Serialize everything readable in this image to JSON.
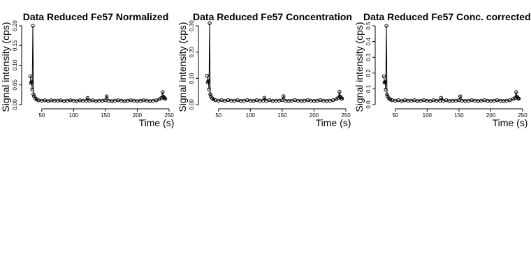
{
  "chart_data": [
    {
      "type": "scatter",
      "title": "Data Reduced Fe57 Normalized",
      "xlabel": "Time (s)",
      "ylabel": "Signal intensity (cps)",
      "xlim": [
        25,
        250
      ],
      "ylim": [
        0,
        0.2
      ],
      "xticks": [
        50,
        100,
        150,
        200,
        250
      ],
      "yticks": [
        0.0,
        0.05,
        0.1,
        0.15,
        0.2
      ],
      "ytick_labels": [
        "0.00",
        "0.05",
        "0.10",
        "0.15",
        "0.20"
      ],
      "grid": false,
      "series": [
        {
          "x": [
            32,
            33,
            34,
            35,
            36,
            37,
            38,
            40,
            42,
            45,
            50,
            55,
            60,
            65,
            70,
            75,
            80,
            85,
            90,
            95,
            100,
            105,
            110,
            115,
            120,
            122,
            125,
            130,
            135,
            140,
            145,
            150,
            152,
            155,
            160,
            165,
            170,
            175,
            180,
            185,
            190,
            195,
            200,
            205,
            210,
            215,
            220,
            225,
            230,
            235,
            238,
            240,
            241,
            242,
            243,
            244
          ],
          "y": [
            0.072,
            0.055,
            0.058,
            0.038,
            0.2,
            0.026,
            0.021,
            0.016,
            0.013,
            0.011,
            0.01,
            0.011,
            0.009,
            0.011,
            0.01,
            0.01,
            0.011,
            0.009,
            0.01,
            0.011,
            0.01,
            0.009,
            0.011,
            0.01,
            0.01,
            0.017,
            0.01,
            0.011,
            0.009,
            0.01,
            0.01,
            0.011,
            0.021,
            0.01,
            0.009,
            0.01,
            0.011,
            0.01,
            0.009,
            0.01,
            0.011,
            0.01,
            0.009,
            0.01,
            0.011,
            0.01,
            0.009,
            0.01,
            0.011,
            0.014,
            0.017,
            0.032,
            0.02,
            0.018,
            0.016,
            0.015
          ]
        }
      ]
    },
    {
      "type": "scatter",
      "title": "Data Reduced Fe57 Concentration",
      "xlabel": "Time (s)",
      "ylabel": "Signal intensity (cps)",
      "xlim": [
        25,
        250
      ],
      "ylim": [
        0,
        0.3
      ],
      "xticks": [
        50,
        100,
        150,
        200,
        250
      ],
      "yticks": [
        0.0,
        0.1,
        0.2,
        0.3
      ],
      "ytick_labels": [
        "0.00",
        "0.10",
        "0.20",
        "0.30"
      ],
      "grid": false,
      "series": [
        {
          "x": [
            32,
            33,
            34,
            35,
            36,
            37,
            38,
            40,
            42,
            45,
            50,
            55,
            60,
            65,
            70,
            75,
            80,
            85,
            90,
            95,
            100,
            105,
            110,
            115,
            120,
            122,
            125,
            130,
            135,
            140,
            145,
            150,
            152,
            155,
            160,
            165,
            170,
            175,
            180,
            185,
            190,
            195,
            200,
            205,
            210,
            215,
            220,
            225,
            230,
            235,
            238,
            240,
            241,
            242,
            243,
            244
          ],
          "y": [
            0.11,
            0.085,
            0.09,
            0.058,
            0.31,
            0.04,
            0.032,
            0.024,
            0.02,
            0.017,
            0.015,
            0.017,
            0.014,
            0.017,
            0.015,
            0.015,
            0.017,
            0.014,
            0.015,
            0.017,
            0.015,
            0.014,
            0.017,
            0.015,
            0.015,
            0.026,
            0.015,
            0.017,
            0.014,
            0.015,
            0.015,
            0.017,
            0.032,
            0.015,
            0.014,
            0.015,
            0.017,
            0.015,
            0.014,
            0.015,
            0.017,
            0.015,
            0.014,
            0.015,
            0.017,
            0.015,
            0.014,
            0.015,
            0.017,
            0.021,
            0.026,
            0.049,
            0.031,
            0.028,
            0.024,
            0.023
          ]
        }
      ]
    },
    {
      "type": "scatter",
      "title": "Data Reduced Fe57 Conc. corrected",
      "xlabel": "Time (s)",
      "ylabel": "Signal intensity (cps)",
      "xlim": [
        25,
        250
      ],
      "ylim": [
        0,
        0.5
      ],
      "xticks": [
        50,
        100,
        150,
        200,
        250
      ],
      "yticks": [
        0.0,
        0.1,
        0.2,
        0.3,
        0.4,
        0.5
      ],
      "ytick_labels": [
        "0.0",
        "0.1",
        "0.2",
        "0.3",
        "0.4",
        "0.5"
      ],
      "grid": false,
      "series": [
        {
          "x": [
            32,
            33,
            34,
            35,
            36,
            37,
            38,
            40,
            42,
            45,
            50,
            55,
            60,
            65,
            70,
            75,
            80,
            85,
            90,
            95,
            100,
            105,
            110,
            115,
            120,
            122,
            125,
            130,
            135,
            140,
            145,
            150,
            152,
            155,
            160,
            165,
            170,
            175,
            180,
            185,
            190,
            195,
            200,
            205,
            210,
            215,
            220,
            225,
            230,
            235,
            238,
            240,
            241,
            242,
            243,
            244
          ],
          "y": [
            0.18,
            0.14,
            0.145,
            0.095,
            0.5,
            0.065,
            0.052,
            0.04,
            0.033,
            0.028,
            0.025,
            0.028,
            0.023,
            0.028,
            0.025,
            0.025,
            0.028,
            0.023,
            0.025,
            0.028,
            0.025,
            0.023,
            0.028,
            0.025,
            0.025,
            0.043,
            0.025,
            0.028,
            0.023,
            0.025,
            0.025,
            0.028,
            0.053,
            0.025,
            0.023,
            0.025,
            0.028,
            0.025,
            0.023,
            0.025,
            0.028,
            0.025,
            0.023,
            0.025,
            0.028,
            0.025,
            0.023,
            0.025,
            0.028,
            0.035,
            0.043,
            0.08,
            0.05,
            0.045,
            0.04,
            0.038
          ]
        }
      ]
    }
  ]
}
